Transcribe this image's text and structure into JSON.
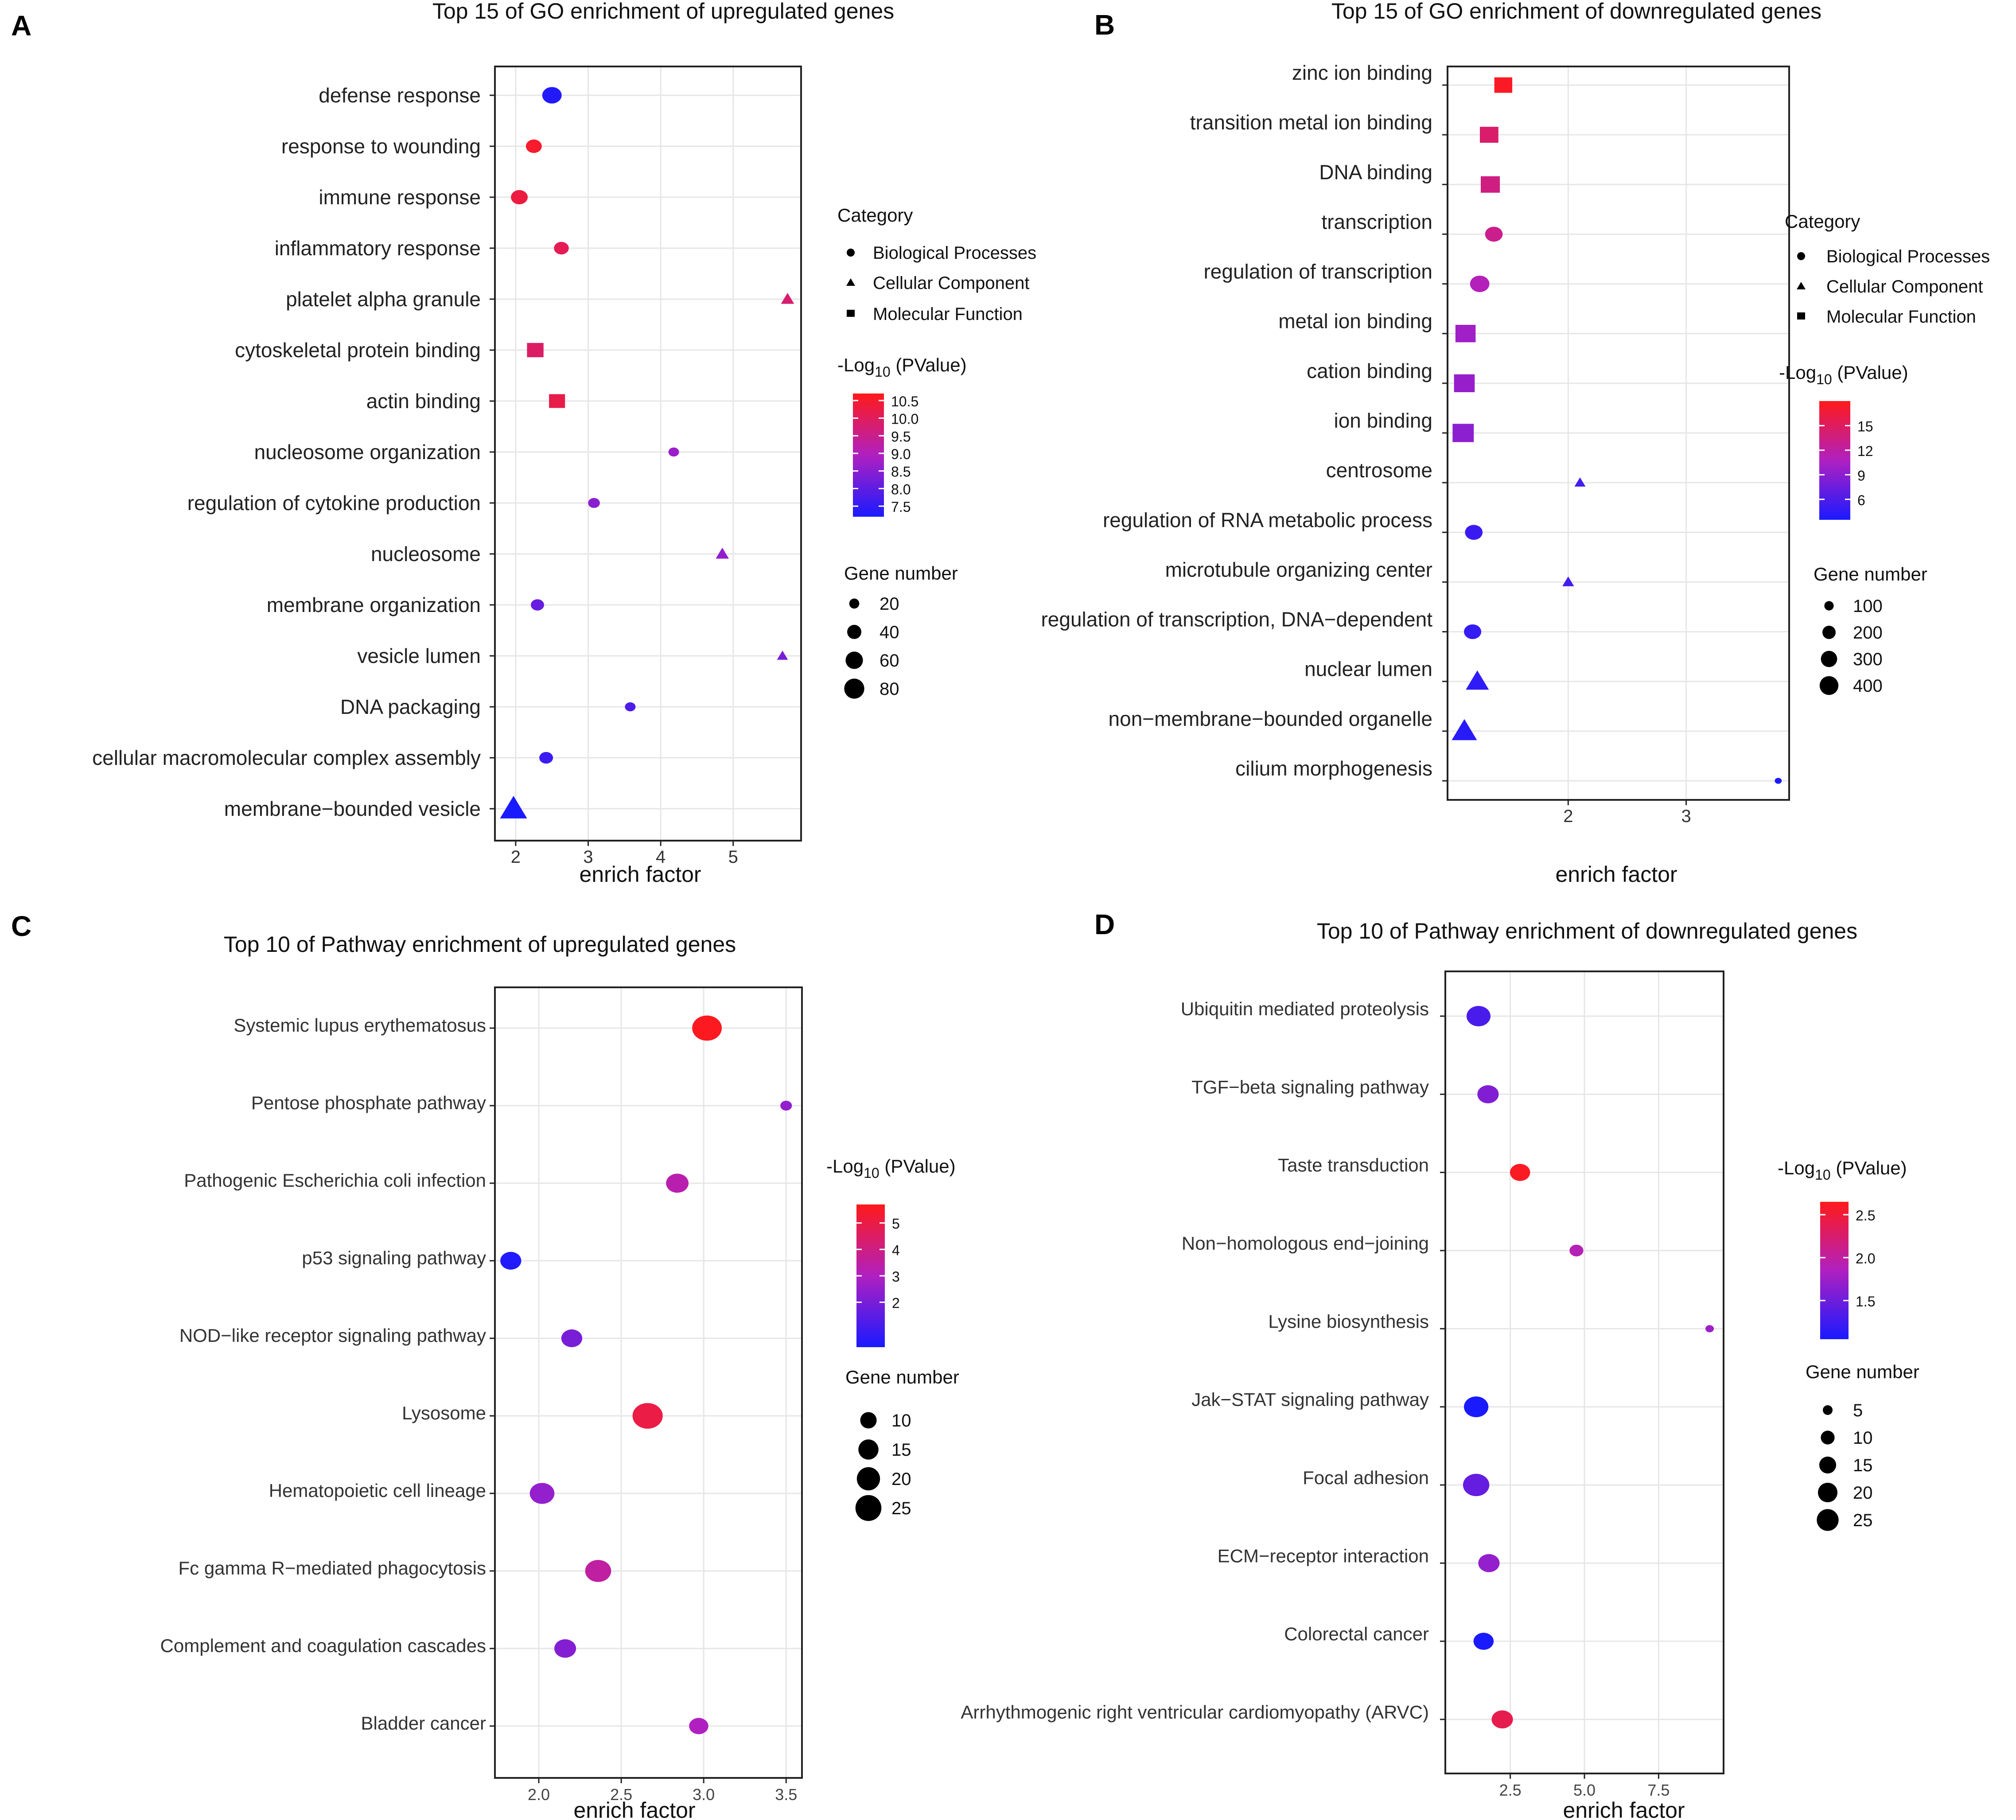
{
  "chart_data": [
    {
      "panel": "A",
      "type": "scatter",
      "title": "Top 15 of GO enrichment of upregulated genes",
      "xlabel": "enrich factor",
      "ylabel": "",
      "xlim": [
        1.75,
        5.9
      ],
      "xticks": [
        "2",
        "3",
        "4",
        "5"
      ],
      "categories": [
        "defense response",
        "response to wounding",
        "immune response",
        "inflammatory response",
        "platelet alpha granule",
        "cytoskeletal protein binding",
        "actin binding",
        "nucleosome organization",
        "regulation of cytokine production",
        "nucleosome",
        "membrane organization",
        "vesicle lumen",
        "DNA packaging",
        "cellular macromolecular complex assembly",
        "membrane−bounded vesicle"
      ],
      "points": [
        {
          "x": 2.5,
          "p": 7.3,
          "n": 60,
          "cat": "BP"
        },
        {
          "x": 2.25,
          "p": 10.5,
          "n": 40,
          "cat": "BP"
        },
        {
          "x": 2.05,
          "p": 10.3,
          "n": 45,
          "cat": "BP"
        },
        {
          "x": 2.63,
          "p": 10.1,
          "n": 35,
          "cat": "BP"
        },
        {
          "x": 5.75,
          "p": 9.8,
          "n": 20,
          "cat": "CC"
        },
        {
          "x": 2.27,
          "p": 9.9,
          "n": 45,
          "cat": "MF"
        },
        {
          "x": 2.57,
          "p": 10.2,
          "n": 42,
          "cat": "MF"
        },
        {
          "x": 4.18,
          "p": 8.7,
          "n": 18,
          "cat": "BP"
        },
        {
          "x": 3.08,
          "p": 8.5,
          "n": 22,
          "cat": "BP"
        },
        {
          "x": 4.85,
          "p": 8.6,
          "n": 20,
          "cat": "CC"
        },
        {
          "x": 2.3,
          "p": 8.1,
          "n": 28,
          "cat": "BP"
        },
        {
          "x": 5.68,
          "p": 8.3,
          "n": 14,
          "cat": "CC"
        },
        {
          "x": 3.58,
          "p": 7.8,
          "n": 18,
          "cat": "BP"
        },
        {
          "x": 2.42,
          "p": 7.6,
          "n": 30,
          "cat": "BP"
        },
        {
          "x": 1.97,
          "p": 7.2,
          "n": 85,
          "cat": "CC"
        }
      ],
      "colorbar": {
        "title": "-Log",
        "sub": "10",
        "after": " (PValue)",
        "min": 7.2,
        "max": 10.7,
        "ticks": [
          7.5,
          8.0,
          8.5,
          9.0,
          9.5,
          10.0,
          10.5
        ],
        "tick_labels": [
          "7.5",
          "8.0",
          "8.5",
          "9.0",
          "9.5",
          "10.0",
          "10.5"
        ]
      },
      "size_legend": {
        "title": "Gene number",
        "values": [
          20,
          40,
          60,
          80
        ],
        "labels": [
          "20",
          "40",
          "60",
          "80"
        ],
        "max": 90
      },
      "category_legend": {
        "title": "Category",
        "items": [
          "Biological Processes",
          "Cellular Component",
          "Molecular Function"
        ]
      }
    },
    {
      "panel": "B",
      "type": "scatter",
      "title": "Top 15 of GO enrichment of downregulated genes",
      "xlabel": "enrich factor",
      "ylabel": "",
      "xlim": [
        1.0,
        3.85
      ],
      "xticks": [
        "2",
        "3"
      ],
      "categories": [
        "zinc ion binding",
        "transition metal ion binding",
        "DNA binding",
        "transcription",
        "regulation of transcription",
        "metal ion binding",
        "cation binding",
        "ion binding",
        "centrosome",
        "regulation of RNA metabolic process",
        "microtubule organizing center",
        "regulation of transcription, DNA−dependent",
        "nuclear lumen",
        "non−membrane−bounded organelle",
        "cilium morphogenesis"
      ],
      "points": [
        {
          "x": 1.45,
          "p": 17.5,
          "n": 300,
          "cat": "MF"
        },
        {
          "x": 1.33,
          "p": 14.5,
          "n": 320,
          "cat": "MF"
        },
        {
          "x": 1.34,
          "p": 13.5,
          "n": 340,
          "cat": "MF"
        },
        {
          "x": 1.37,
          "p": 13.0,
          "n": 280,
          "cat": "BP"
        },
        {
          "x": 1.25,
          "p": 11.0,
          "n": 340,
          "cat": "BP"
        },
        {
          "x": 1.13,
          "p": 10.0,
          "n": 380,
          "cat": "MF"
        },
        {
          "x": 1.12,
          "p": 9.5,
          "n": 400,
          "cat": "MF"
        },
        {
          "x": 1.11,
          "p": 9.0,
          "n": 420,
          "cat": "MF"
        },
        {
          "x": 2.1,
          "p": 5.5,
          "n": 80,
          "cat": "CC"
        },
        {
          "x": 1.2,
          "p": 5.0,
          "n": 280,
          "cat": "BP"
        },
        {
          "x": 2.0,
          "p": 5.5,
          "n": 90,
          "cat": "CC"
        },
        {
          "x": 1.19,
          "p": 4.8,
          "n": 270,
          "cat": "BP"
        },
        {
          "x": 1.23,
          "p": 4.5,
          "n": 350,
          "cat": "CC"
        },
        {
          "x": 1.12,
          "p": 4.2,
          "n": 420,
          "cat": "CC"
        },
        {
          "x": 3.78,
          "p": 3.5,
          "n": 20,
          "cat": "BP"
        }
      ],
      "colorbar": {
        "title": "-Log",
        "sub": "10",
        "after": " (PValue)",
        "min": 3.5,
        "max": 18,
        "ticks": [
          6,
          9,
          12,
          15
        ],
        "tick_labels": [
          "6",
          "9",
          "12",
          "15"
        ]
      },
      "size_legend": {
        "title": "Gene number",
        "values": [
          100,
          200,
          300,
          400
        ],
        "labels": [
          "100",
          "200",
          "300",
          "400"
        ],
        "max": 430
      },
      "category_legend": {
        "title": "Category",
        "items": [
          "Biological Processes",
          "Cellular Component",
          "Molecular Function"
        ]
      }
    },
    {
      "panel": "C",
      "type": "scatter",
      "title": "Top 10 of Pathway enrichment of upregulated genes",
      "xlabel": "enrich factor",
      "ylabel": "",
      "xlim": [
        1.75,
        3.58
      ],
      "xticks": [
        "2.0",
        "2.5",
        "3.0",
        "3.5"
      ],
      "categories": [
        "Systemic lupus erythematosus",
        "Pentose phosphate pathway",
        "Pathogenic Escherichia coli infection",
        "p53 signaling pathway",
        "NOD−like receptor signaling pathway",
        "Lysosome",
        "Hematopoietic cell lineage",
        "Fc gamma R−mediated phagocytosis",
        "Complement and coagulation cascades",
        "Bladder cancer"
      ],
      "points": [
        {
          "x": 3.02,
          "p": 5.6,
          "n": 26
        },
        {
          "x": 3.5,
          "p": 2.5,
          "n": 4
        },
        {
          "x": 2.84,
          "p": 3.3,
          "n": 15
        },
        {
          "x": 1.83,
          "p": 0.4,
          "n": 13
        },
        {
          "x": 2.2,
          "p": 2.0,
          "n": 13
        },
        {
          "x": 2.66,
          "p": 5.0,
          "n": 27
        },
        {
          "x": 2.02,
          "p": 2.5,
          "n": 18
        },
        {
          "x": 2.36,
          "p": 3.5,
          "n": 20
        },
        {
          "x": 2.16,
          "p": 2.2,
          "n": 14
        },
        {
          "x": 2.97,
          "p": 3.0,
          "n": 11
        }
      ],
      "colorbar": {
        "title": "-Log",
        "sub": "10",
        "after": " (PValue)",
        "min": 0.3,
        "max": 5.7,
        "ticks": [
          2,
          3,
          4,
          5
        ],
        "tick_labels": [
          "2",
          "3",
          "4",
          "5"
        ]
      },
      "size_legend": {
        "title": "Gene number",
        "values": [
          10,
          15,
          20,
          25
        ],
        "labels": [
          "10",
          "15",
          "20",
          "25"
        ],
        "max": 28
      }
    },
    {
      "panel": "D",
      "type": "scatter",
      "title": "Top 10 of Pathway enrichment of downregulated genes",
      "xlabel": "enrich factor",
      "ylabel": "",
      "xlim": [
        0.4,
        9.6
      ],
      "xticks": [
        "2.5",
        "5.0",
        "7.5"
      ],
      "categories": [
        "Ubiquitin mediated proteolysis",
        "TGF−beta signaling pathway",
        "Taste transduction",
        "Non−homologous end−joining",
        "Lysine biosynthesis",
        "Jak−STAT signaling pathway",
        "Focal adhesion",
        "ECM−receptor interaction",
        "Colorectal cancer",
        "Arrhythmogenic right ventricular cardiomyopathy (ARVC)"
      ],
      "points": [
        {
          "x": 1.43,
          "p": 1.3,
          "n": 24
        },
        {
          "x": 1.75,
          "p": 1.6,
          "n": 19
        },
        {
          "x": 2.83,
          "p": 2.6,
          "n": 17
        },
        {
          "x": 4.73,
          "p": 1.9,
          "n": 8
        },
        {
          "x": 9.22,
          "p": 1.75,
          "n": 3
        },
        {
          "x": 1.35,
          "p": 1.05,
          "n": 25
        },
        {
          "x": 1.35,
          "p": 1.45,
          "n": 29
        },
        {
          "x": 1.78,
          "p": 1.7,
          "n": 19
        },
        {
          "x": 1.6,
          "p": 1.05,
          "n": 17
        },
        {
          "x": 2.23,
          "p": 2.4,
          "n": 19
        }
      ],
      "colorbar": {
        "title": "-Log",
        "sub": "10",
        "after": " (PValue)",
        "min": 1.05,
        "max": 2.65,
        "ticks": [
          1.5,
          2.0,
          2.5
        ],
        "tick_labels": [
          "1.5",
          "2.0",
          "2.5"
        ]
      },
      "size_legend": {
        "title": "Gene number",
        "values": [
          5,
          10,
          15,
          20,
          25
        ],
        "labels": [
          "5",
          "10",
          "15",
          "20",
          "25"
        ],
        "max": 30
      }
    }
  ],
  "panel_labels": [
    "A",
    "B",
    "C",
    "D"
  ],
  "colors": {
    "low": "#1a1aff",
    "mid": "#b020c0",
    "high": "#ff1a1a"
  }
}
